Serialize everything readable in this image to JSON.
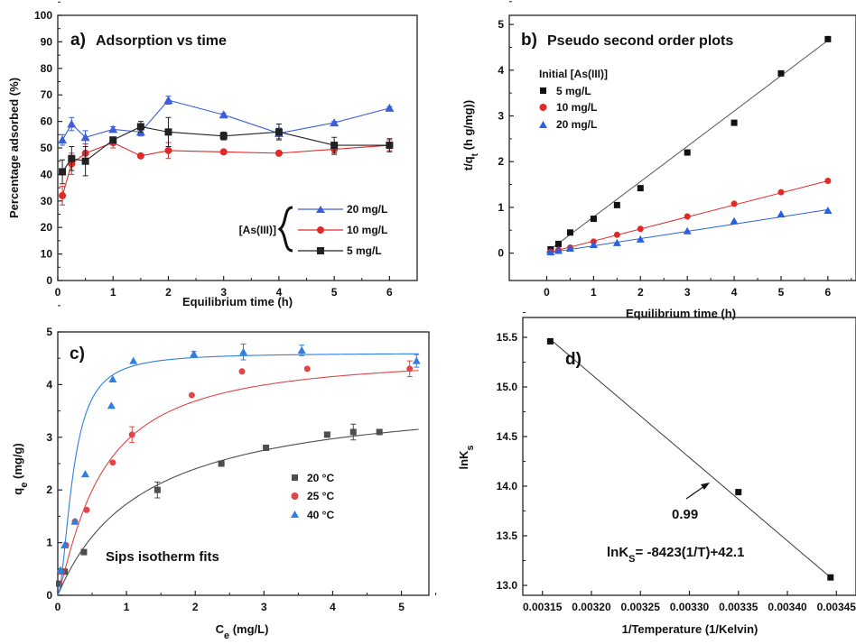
{
  "chart_data": [
    {
      "panel": "a)",
      "type": "line",
      "title": "Adsorption vs time",
      "xlabel": "Equilibrium time (h)",
      "ylabel": "Percentage adsorbed (%)",
      "xlim": [
        0,
        6.5
      ],
      "ylim": [
        0,
        100
      ],
      "xticks": [
        0,
        1,
        2,
        3,
        4,
        5,
        6
      ],
      "yticks": [
        0,
        10,
        20,
        30,
        40,
        50,
        60,
        70,
        80,
        90,
        100
      ],
      "legend_prefix": "[As(III)]",
      "legend_position": "center-right",
      "x": [
        0.083,
        0.25,
        0.5,
        1,
        1.5,
        2,
        3,
        4,
        5,
        6
      ],
      "series": [
        {
          "name": "20 mg/L",
          "color": "#3c5fd8",
          "marker": "triangle",
          "values": [
            53,
            59,
            54,
            57,
            56,
            68,
            62.5,
            55.5,
            59.5,
            65
          ],
          "errors": [
            2,
            2.5,
            2.5,
            1,
            1.5,
            1.5,
            0.5,
            2,
            0.5,
            0.5
          ]
        },
        {
          "name": "10 mg/L",
          "color": "#e02a2a",
          "marker": "circle",
          "values": [
            32,
            44,
            48,
            52,
            47,
            49,
            48.5,
            48,
            49.5,
            51
          ],
          "errors": [
            3.5,
            4,
            3.5,
            2,
            0.5,
            3,
            0.5,
            0.5,
            2,
            2
          ]
        },
        {
          "name": "5 mg/L",
          "color": "#222222",
          "marker": "square",
          "values": [
            41,
            46,
            45,
            53,
            58,
            56,
            54.5,
            56,
            51,
            51
          ],
          "errors": [
            4.5,
            4.5,
            5.5,
            1,
            2,
            5.5,
            1.5,
            3,
            3,
            2.5
          ]
        }
      ]
    },
    {
      "panel": "b)",
      "type": "scatter",
      "title": "Pseudo second order plots",
      "xlabel": "Equilibrium time (h)",
      "ylabel": "t/q_t (h g/mg))",
      "xlim": [
        -0.8,
        6.6
      ],
      "ylim": [
        -0.6,
        5.2
      ],
      "xticks": [
        0,
        1,
        2,
        3,
        4,
        5,
        6
      ],
      "yticks": [
        0,
        1,
        2,
        3,
        4,
        5
      ],
      "legend_title": "Initial [As(III)]",
      "legend_position": "top-left",
      "x": [
        0.083,
        0.25,
        0.5,
        1,
        1.5,
        2,
        3,
        4,
        5,
        6
      ],
      "series": [
        {
          "name": "5 mg/L",
          "color": "#111111",
          "marker": "square",
          "values": [
            0.08,
            0.2,
            0.45,
            0.75,
            1.05,
            1.42,
            2.2,
            2.85,
            3.93,
            4.68
          ],
          "fit": [
            [
              0,
              0.02
            ],
            [
              6,
              4.65
            ]
          ]
        },
        {
          "name": "10 mg/L",
          "color": "#e02a2a",
          "marker": "circle",
          "values": [
            0.03,
            0.07,
            0.12,
            0.25,
            0.4,
            0.53,
            0.8,
            1.08,
            1.33,
            1.58
          ],
          "fit": [
            [
              0,
              0.0
            ],
            [
              6,
              1.58
            ]
          ]
        },
        {
          "name": "20 mg/L",
          "color": "#2a5fe0",
          "marker": "triangle",
          "values": [
            0.02,
            0.05,
            0.1,
            0.18,
            0.22,
            0.3,
            0.48,
            0.7,
            0.85,
            0.93
          ],
          "fit": [
            [
              0,
              0.0
            ],
            [
              6,
              0.95
            ]
          ]
        }
      ]
    },
    {
      "panel": "c)",
      "type": "scatter",
      "title": "",
      "xlabel": "C_e (mg/L)",
      "ylabel": "q_e (mg/g)",
      "xlim": [
        0,
        5.4
      ],
      "ylim": [
        0,
        5
      ],
      "xticks": [
        0,
        1,
        2,
        3,
        4,
        5
      ],
      "yticks": [
        0,
        1,
        2,
        3,
        4,
        5
      ],
      "annotation": "Sips isotherm fits",
      "legend_position": "center-right",
      "series": [
        {
          "name": "20 °C",
          "color": "#4d4d4d",
          "marker": "square",
          "x": [
            0.02,
            0.1,
            0.38,
            1.45,
            2.38,
            3.03,
            3.92,
            4.3,
            4.68
          ],
          "values": [
            0.22,
            0.45,
            0.82,
            2.0,
            2.5,
            2.8,
            3.05,
            3.1,
            3.1
          ],
          "errors": [
            0,
            0,
            0,
            0.15,
            0,
            0,
            0,
            0.15,
            0
          ],
          "fit_qm": 3.9,
          "fit_K": 0.8,
          "fit_n": 1.0
        },
        {
          "name": "25 °C",
          "color": "#e24545",
          "marker": "circle",
          "x": [
            0.04,
            0.12,
            0.25,
            0.42,
            0.8,
            1.08,
            1.95,
            2.68,
            3.63,
            5.12
          ],
          "values": [
            0.45,
            0.95,
            1.4,
            1.62,
            2.52,
            3.05,
            3.8,
            4.25,
            4.3,
            4.3
          ],
          "errors": [
            0,
            0,
            0,
            0,
            0,
            0.15,
            0,
            0,
            0,
            0.15
          ],
          "fit_qm": 4.6,
          "fit_K": 1.6,
          "fit_n": 1.2
        },
        {
          "name": "40 °C",
          "color": "#2e7fe0",
          "marker": "triangle",
          "x": [
            0.04,
            0.1,
            0.25,
            0.4,
            0.78,
            0.8,
            1.1,
            1.98,
            2.7,
            3.55,
            5.22
          ],
          "values": [
            0.48,
            0.95,
            1.4,
            2.3,
            3.6,
            4.1,
            4.45,
            4.58,
            4.62,
            4.65,
            4.45
          ],
          "errors": [
            0,
            0,
            0,
            0,
            0,
            0,
            0,
            0.05,
            0.15,
            0.1,
            0.12
          ],
          "fit_qm": 4.6,
          "fit_K": 4.5,
          "fit_n": 1.8
        }
      ]
    },
    {
      "panel": "d)",
      "type": "scatter",
      "title": "",
      "xlabel": "1/Temperature (1/Kelvin)",
      "ylabel": "lnK_s",
      "xlim": [
        0.00313,
        0.00347
      ],
      "ylim": [
        12.9,
        15.7
      ],
      "xticks": [
        0.00315,
        0.0032,
        0.00325,
        0.0033,
        0.00335,
        0.0034,
        0.00345
      ],
      "xtick_labels": [
        "0.00315",
        "0.00320",
        "0.00325",
        "0.00330",
        "0.00335",
        "0.00340",
        "0.00345"
      ],
      "yticks": [
        13.0,
        13.5,
        14.0,
        14.5,
        15.0,
        15.5
      ],
      "ytick_labels": [
        "13.0",
        "13.5",
        "14.0",
        "14.5",
        "15.0",
        "15.5"
      ],
      "x": [
        0.003158,
        0.00335,
        0.003444
      ],
      "values": [
        15.46,
        13.94,
        13.08
      ],
      "fit": [
        [
          0.003158,
          15.48
        ],
        [
          0.003444,
          13.08
        ]
      ],
      "r2_label": "0.99",
      "equation_prefix": "lnK",
      "equation_sub": "S",
      "equation_suffix": "= -8423(1/T)+42.1"
    }
  ]
}
